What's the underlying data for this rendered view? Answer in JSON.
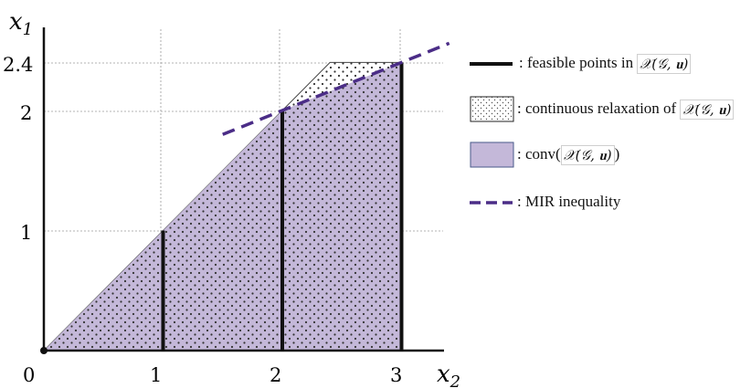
{
  "axes": {
    "x_label": "x",
    "x_label_sub": "2",
    "y_label": "x",
    "y_label_sub": "1",
    "x_ticks": [
      "0",
      "1",
      "2",
      "3"
    ],
    "y_ticks": [
      "1",
      "2",
      "2.4"
    ]
  },
  "legend": {
    "feasible": {
      "prefix": ":  feasible points in",
      "math": "𝒳(𝒢, 𝐮)"
    },
    "relaxation": {
      "prefix": ":  continuous relaxation of",
      "math": "𝒳(𝒢, 𝐮)"
    },
    "conv": {
      "prefix": ":  conv(",
      "math": "𝒳(𝒢, 𝐮)",
      "suffix": ")"
    },
    "mir": {
      "prefix": ":  MIR inequality"
    }
  },
  "colors": {
    "hull_fill": "#c4b8d9",
    "mir_line": "#4b2d87",
    "axis": "#111111",
    "grid": "#999999"
  },
  "chart_data": {
    "type": "polytope",
    "x_variable": "x2",
    "y_variable": "x1",
    "continuous_relaxation": [
      [
        0,
        0
      ],
      [
        2.4,
        2.4
      ],
      [
        3,
        2.4
      ],
      [
        3,
        0
      ]
    ],
    "convex_hull": [
      [
        0,
        0
      ],
      [
        2,
        2
      ],
      [
        3,
        2.4
      ],
      [
        3,
        0
      ]
    ],
    "feasible_segments": [
      {
        "x": 1,
        "y_from": 0,
        "y_to": 1
      },
      {
        "x": 2,
        "y_from": 0,
        "y_to": 2
      },
      {
        "x": 3,
        "y_from": 0,
        "y_to": 2.4
      }
    ],
    "mir_inequality": {
      "points": [
        [
          1.5,
          1.8
        ],
        [
          3.4,
          2.56
        ]
      ]
    },
    "xlim": [
      0,
      3.4
    ],
    "ylim": [
      0,
      2.4
    ],
    "grid": true
  }
}
